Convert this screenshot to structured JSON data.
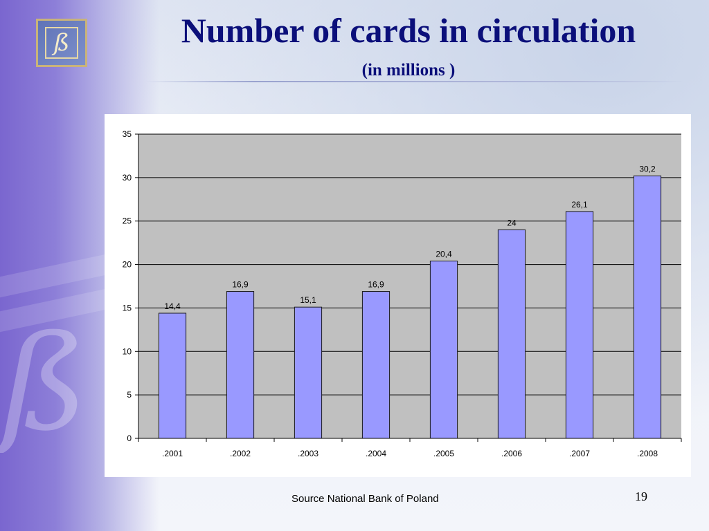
{
  "slide": {
    "title": "Number of cards in circulation",
    "subtitle": "(in millions )",
    "source": "Source National Bank of Poland",
    "page_number": "19",
    "logo_glyph": "ß"
  },
  "colors": {
    "title": "#0b0f7a",
    "bar_fill": "#9999ff",
    "bar_stroke": "#1a1a1a",
    "plot_background": "#c0c0c0"
  },
  "chart_data": {
    "type": "bar",
    "title": "",
    "xlabel": "",
    "ylabel": "",
    "categories": [
      ".2001",
      ".2002",
      ".2003",
      ".2004",
      ".2005",
      ".2006",
      ".2007",
      ".2008"
    ],
    "values": [
      14.4,
      16.9,
      15.1,
      16.9,
      20.4,
      24,
      26.1,
      30.2
    ],
    "data_labels": [
      "14,4",
      "16,9",
      "15,1",
      "16,9",
      "20,4",
      "24",
      "26,1",
      "30,2"
    ],
    "ylim": [
      0,
      35
    ],
    "yticks": [
      0,
      5,
      10,
      15,
      20,
      25,
      30,
      35
    ],
    "grid": true,
    "legend": "none"
  }
}
